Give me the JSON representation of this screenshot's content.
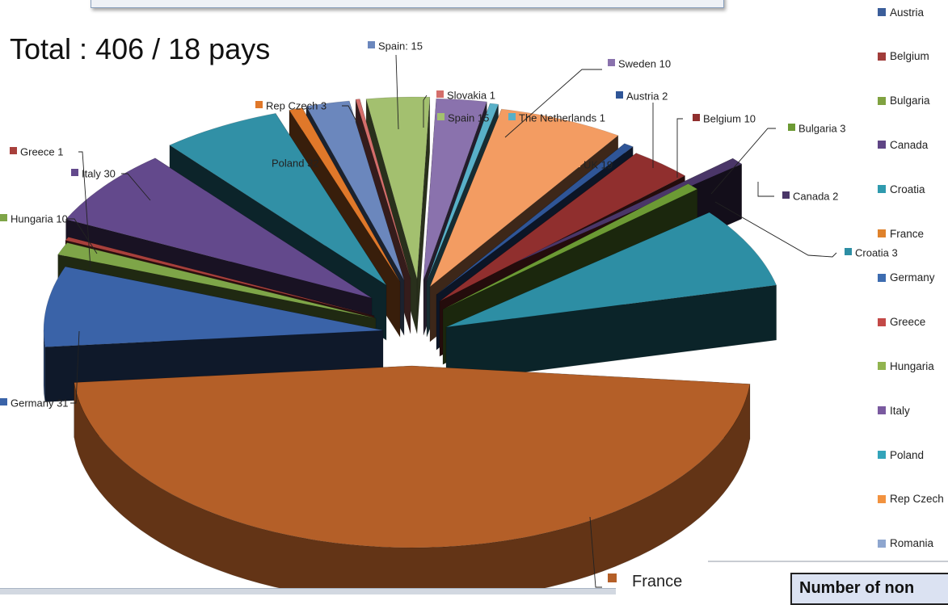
{
  "total_text": "Total : 406 / 18 pays",
  "bottom_box_text": "Number of non",
  "legend": [
    {
      "label": "Austria",
      "color": "#3b5e9a"
    },
    {
      "label": "Belgium",
      "color": "#a13c3a"
    },
    {
      "label": "Bulgaria",
      "color": "#80a241"
    },
    {
      "label": "Canada",
      "color": "#5f4585"
    },
    {
      "label": "Croatia",
      "color": "#2f9aae"
    },
    {
      "label": "France",
      "color": "#df822c"
    },
    {
      "label": "Germany",
      "color": "#3d6cb0"
    },
    {
      "label": "Greece",
      "color": "#c34947"
    },
    {
      "label": "Hungaria",
      "color": "#91b44f"
    },
    {
      "label": "Italy",
      "color": "#7a5aa0"
    },
    {
      "label": "Poland",
      "color": "#33a4ba"
    },
    {
      "label": "Rep Czech",
      "color": "#f2923f"
    },
    {
      "label": "Romania",
      "color": "#8ea6cf"
    }
  ],
  "chart_data": {
    "type": "pie",
    "style": "3d-exploded",
    "title": "",
    "slices": [
      {
        "label": "France",
        "value": null,
        "color": "#b45f28"
      },
      {
        "label": "Germany 31",
        "value": 31,
        "color": "#3a63a8"
      },
      {
        "label": "Hungaria 10",
        "value": 10,
        "color": "#7ea548"
      },
      {
        "label": "Greece 1",
        "value": 1,
        "color": "#a8403c"
      },
      {
        "label": "Italy 30",
        "value": 30,
        "color": "#63498c"
      },
      {
        "label": "Poland 32",
        "value": 32,
        "color": "#3190a6"
      },
      {
        "label": "Rep Czech 3",
        "value": 3,
        "color": "#e0782a"
      },
      {
        "label": "Spain: 15",
        "value": 15,
        "color": "#6b87bd"
      },
      {
        "label": "Slovakia 1",
        "value": 1,
        "color": "#d46e6b"
      },
      {
        "label": "Spain 15",
        "value": 15,
        "color": "#a3c06f"
      },
      {
        "label": "Sweden 10",
        "value": 10,
        "color": "#8a72ad"
      },
      {
        "label": "The Netherlands 1",
        "value": 1,
        "color": "#58b0c8"
      },
      {
        "label": "UK 19",
        "value": 19,
        "color": "#f39c62"
      },
      {
        "label": "Austria 2",
        "value": 2,
        "color": "#2f5597"
      },
      {
        "label": "Belgium 10",
        "value": 10,
        "color": "#902f2e"
      },
      {
        "label": "Bulgaria 3",
        "value": 3,
        "color": "#6c9a34"
      },
      {
        "label": "Canada 2",
        "value": 2,
        "color": "#4a3668"
      },
      {
        "label": "Croatia 3",
        "value": 3,
        "color": "#2d8ea4"
      }
    ],
    "callout_labels": [
      {
        "text": "Spain: 15",
        "color": "#6b87bd"
      },
      {
        "text": "Sweden 10",
        "color": "#8a72ad"
      },
      {
        "text": "Slovakia 1",
        "color": "#d46e6b"
      },
      {
        "text": "Austria 2",
        "color": "#2f5597"
      },
      {
        "text": "Rep Czech 3",
        "color": "#e0782a"
      },
      {
        "text": "Spain 15",
        "color": "#a3c06f"
      },
      {
        "text": "The Netherlands 1",
        "color": "#58b0c8"
      },
      {
        "text": "Belgium 10",
        "color": "#902f2e"
      },
      {
        "text": "Greece 1",
        "color": "#a8403c"
      },
      {
        "text": "Bulgaria 3",
        "color": "#6c9a34"
      },
      {
        "text": "Poland 32",
        "color": "#3190a6"
      },
      {
        "text": "UK 19",
        "color": "#f39c62"
      },
      {
        "text": "Italy 30",
        "color": "#63498c"
      },
      {
        "text": "Canada 2",
        "color": "#4a3668"
      },
      {
        "text": "Hungaria 10",
        "color": "#7ea548"
      },
      {
        "text": "Croatia 3",
        "color": "#2d8ea4"
      },
      {
        "text": "Germany 31",
        "color": "#3a63a8"
      },
      {
        "text": "France",
        "color": "#b45f28"
      }
    ]
  }
}
